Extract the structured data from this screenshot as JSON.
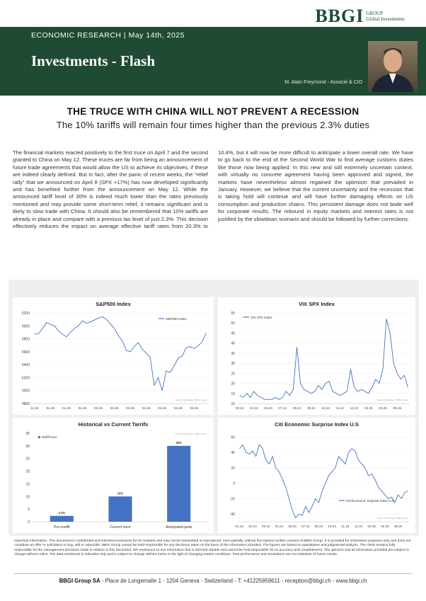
{
  "logo": {
    "name": "BBGI",
    "group": "GROUP",
    "tagline": "Global Investments"
  },
  "header": {
    "section": "ECONOMIC RESEARCH |  May 14th, 2025",
    "title": "Investments - Flash",
    "author": "M. Alain Freymond - Associé & CIO"
  },
  "article": {
    "title": "THE TRUCE WITH CHINA WILL NOT PREVENT A RECESSION",
    "subtitle": "The 10% tariffs will remain four times higher than the previous 2.3% duties",
    "body": "The financial markets reacted positively to the first truce on April 7 and the second granted to China on May 12. These truces are far from being an announcement of future trade agreements that would allow the US to achieve its objectives, if these are indeed clearly defined. But in fact, after the panic of recent weeks, the “relief rally” that we announced on April 8 (SPX +17%) has now developed significantly and has benefited further from the announcement on May 12. While the announced tariff level of 30% is indeed much lower than the rates previously mentioned and may provide some short-term relief, it remains significant and is likely to slow trade with China. It should also be remembered that 10% tariffs are already in place and compare with a previous tax level of just 2.3%. This decision effectively reduces the impact on average effective tariff rates from 20.3% to 10.4%, but it will now be more difficult to anticipate a lower overall rate. We have to go back to the end of the Second World War to find average customs duties like those now being applied. In this new and still extremely uncertain context, with virtually no concrete agreement having been approved and signed, the markets have nevertheless almost regained the optimism that prevailed in January. However, we believe that the current uncertainty and the recession that is taking hold will continue and will have further damaging effects on US consumption and production chains. This persistent damage does not bode well for corporate results. The rebound in equity markets and interest rates is not justified by the slowdown scenario and should be followed by further corrections."
  },
  "chart_data": [
    {
      "type": "line",
      "title": "S&P500  Index",
      "source": "Source: Bloomberg / BBGI Group",
      "legend": "upper right",
      "grid": true,
      "categories": [
        "12.24",
        null,
        null,
        null,
        "01.25",
        null,
        null,
        null,
        "01.25",
        null,
        null,
        null,
        "02.25",
        null,
        null,
        null,
        "02.25",
        null,
        null,
        null,
        "03.25",
        null,
        null,
        null,
        "03.25",
        null,
        null,
        null,
        "04.25",
        null,
        null,
        null,
        "04.25",
        null,
        null,
        null,
        "04.25",
        null,
        null,
        null,
        "05.25",
        null,
        null,
        null
      ],
      "series": [
        {
          "name": "S&P500 Index",
          "color": "#4472c4",
          "values": [
            5870,
            5880,
            5960,
            6050,
            6020,
            6000,
            5920,
            5870,
            5830,
            5900,
            5960,
            6000,
            6080,
            6040,
            6060,
            6090,
            6120,
            6140,
            6100,
            6030,
            5960,
            5850,
            5770,
            5620,
            5600,
            5680,
            5740,
            5640,
            5580,
            5510,
            5080,
            5200,
            5000,
            5300,
            5280,
            5380,
            5500,
            5530,
            5660,
            5680,
            5650,
            5690,
            5750,
            5890
          ]
        }
      ],
      "ylim": [
        4800,
        6200
      ],
      "yticks": [
        4800,
        5000,
        5200,
        5400,
        5600,
        5800,
        6000,
        6200
      ]
    },
    {
      "type": "line",
      "title": "VIX SPX Index",
      "source": "Source: Bloomberg / BBGI Group",
      "legend": "upper left",
      "grid": true,
      "categories": [
        "03.24",
        null,
        null,
        null,
        "04.24",
        null,
        null,
        null,
        "05.24",
        null,
        null,
        null,
        "07.24",
        null,
        null,
        null,
        "08.24",
        null,
        null,
        null,
        "09.24",
        null,
        null,
        null,
        "10.24",
        null,
        null,
        null,
        "11.24",
        null,
        null,
        null,
        "12.24",
        null,
        null,
        null,
        "02.25",
        null,
        null,
        null,
        "03.25",
        null,
        null,
        null,
        "05.25",
        null,
        null,
        null
      ],
      "series": [
        {
          "name": "VIX SPX Index",
          "color": "#4472c4",
          "values": [
            14,
            13,
            15,
            13,
            16,
            14,
            13,
            12,
            12,
            12,
            13,
            12,
            13,
            16,
            14,
            17,
            38,
            20,
            17,
            16,
            15,
            16,
            19,
            17,
            20,
            21,
            16,
            15,
            14,
            15,
            16,
            27,
            18,
            16,
            17,
            16,
            15,
            18,
            22,
            20,
            27,
            52,
            45,
            30,
            25,
            22,
            24,
            18
          ]
        }
      ],
      "ylim": [
        10,
        55
      ],
      "yticks": [
        10,
        15,
        20,
        25,
        30,
        35,
        40,
        45,
        50,
        55
      ]
    },
    {
      "type": "bar",
      "title": "Historical vs Current Tarrifs",
      "source": "Source: Bloomberg / BBGI Group",
      "legend": "upper left",
      "grid": false,
      "categories": [
        "Pre-conflit",
        "Current truce",
        "Anticipated peak"
      ],
      "series": [
        {
          "name": "Tariff level",
          "color": "#4472c4",
          "values": [
            2.3,
            10,
            30
          ],
          "value_labels": [
            "2.3%",
            "10%",
            "30%"
          ]
        }
      ],
      "ylim": [
        0,
        35
      ],
      "yticks": [
        0,
        5,
        10,
        15,
        20,
        25,
        30,
        35
      ]
    },
    {
      "type": "line",
      "title": "Citi Economic Surprise Index U.S",
      "source": "Source: Bloomberg / BBGI Group",
      "legend": "lower right",
      "grid": true,
      "categories": [
        "01.24",
        null,
        null,
        null,
        "02.24",
        null,
        null,
        null,
        "03.24",
        null,
        null,
        null,
        "04.24",
        null,
        null,
        null,
        "06.24",
        null,
        null,
        null,
        "07.24",
        null,
        null,
        null,
        "08.24",
        null,
        null,
        null,
        "10.24",
        null,
        null,
        null,
        "11.24",
        null,
        null,
        null,
        "12.24",
        null,
        null,
        null,
        "02.25",
        null,
        null,
        null,
        "03.25",
        null,
        null,
        null,
        "05.25",
        null,
        null,
        null
      ],
      "series": [
        {
          "name": "Citi Economic Surprise Index U.S",
          "color": "#4472c4",
          "values": [
            45,
            50,
            40,
            38,
            42,
            35,
            50,
            45,
            30,
            25,
            35,
            20,
            15,
            5,
            -5,
            -20,
            -35,
            -45,
            -40,
            -42,
            -30,
            -38,
            -30,
            -20,
            -25,
            -10,
            0,
            10,
            15,
            20,
            35,
            30,
            25,
            40,
            45,
            42,
            30,
            25,
            20,
            10,
            12,
            5,
            -5,
            -10,
            -15,
            -20,
            -18,
            -25,
            -15,
            -20,
            -12,
            -10
          ]
        }
      ],
      "ylim": [
        -50,
        65
      ],
      "yticks": [
        -40,
        -20,
        0,
        20,
        40,
        60
      ]
    }
  ],
  "disclaimer": "Important information: This document is confidential and intended exclusively for its recipient and may not be transmitted or reproduced, even partially, without the express written consent of BBGI Group. It is provided for information purposes only and does not constitute an offer or solicitation to buy, sell or subscribe.  BBGI Group cannot be held responsible for any decisions taken on the basis of the information provided. The figures are based on quantitative and judgmental analysis. The client remains fully responsible for the management decisions made in relation to this document. We endeavour to use information that is deemed reliable and cannot be held responsible for its accuracy and completeness. The opinions and all information provided are subject to change without notice. The data mentioned is indicative only and is subject to change without notice in the light of changing market conditions. Past performance and simulations are not indicative of future results.",
  "footer": {
    "company": "BBGI Group SA",
    "address": " - Place de Longemalle 1 - 1204 Geneva - Switzerland - T: +41225959611 - reception@bbgi.ch - www.bbgi.ch"
  }
}
